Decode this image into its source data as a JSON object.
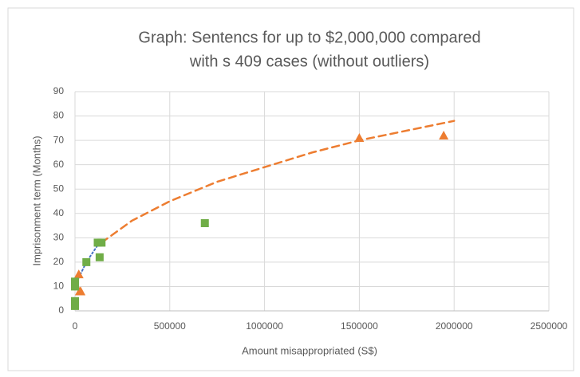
{
  "chart_data": {
    "type": "scatter",
    "title": [
      "Graph: Sentencs for up to $2,000,000 compared",
      "with s 409 cases (without outliers)"
    ],
    "x_label": "Amount misappropriated (S$)",
    "y_label": "Imprisonment term (Months)",
    "xlim": [
      0,
      2500000
    ],
    "xticks": [
      0,
      500000,
      1000000,
      1500000,
      2000000,
      2500000
    ],
    "ylim": [
      0,
      90
    ],
    "yticks": [
      0,
      10,
      20,
      30,
      40,
      50,
      60,
      70,
      80,
      90
    ],
    "grid": true,
    "series": [
      {
        "color": "#ed7d31",
        "marker": "triangle",
        "x": [
          1500000,
          1945000,
          20000,
          25000,
          30000
        ],
        "values": [
          71,
          72,
          15,
          8,
          8
        ]
      },
      {
        "color": "#70ad47",
        "marker": "square",
        "x": [
          0,
          0,
          0,
          0,
          0,
          0,
          60000,
          120000,
          140000,
          130000,
          685000
        ],
        "values": [
          12,
          11,
          10,
          4,
          3,
          2,
          20,
          28,
          28,
          22,
          36
        ]
      }
    ],
    "trendlines": [
      {
        "color": "#ed7d31",
        "style": "dashed",
        "x": [
          140000,
          300000,
          500000,
          750000,
          1000000,
          1250000,
          1500000,
          1750000,
          2000000
        ],
        "values": [
          28,
          37,
          45,
          53,
          59,
          65,
          70,
          74,
          78
        ]
      },
      {
        "color": "#4472c4",
        "style": "dotted",
        "x": [
          10000,
          60000,
          120000
        ],
        "values": [
          12,
          20,
          27
        ]
      }
    ]
  }
}
